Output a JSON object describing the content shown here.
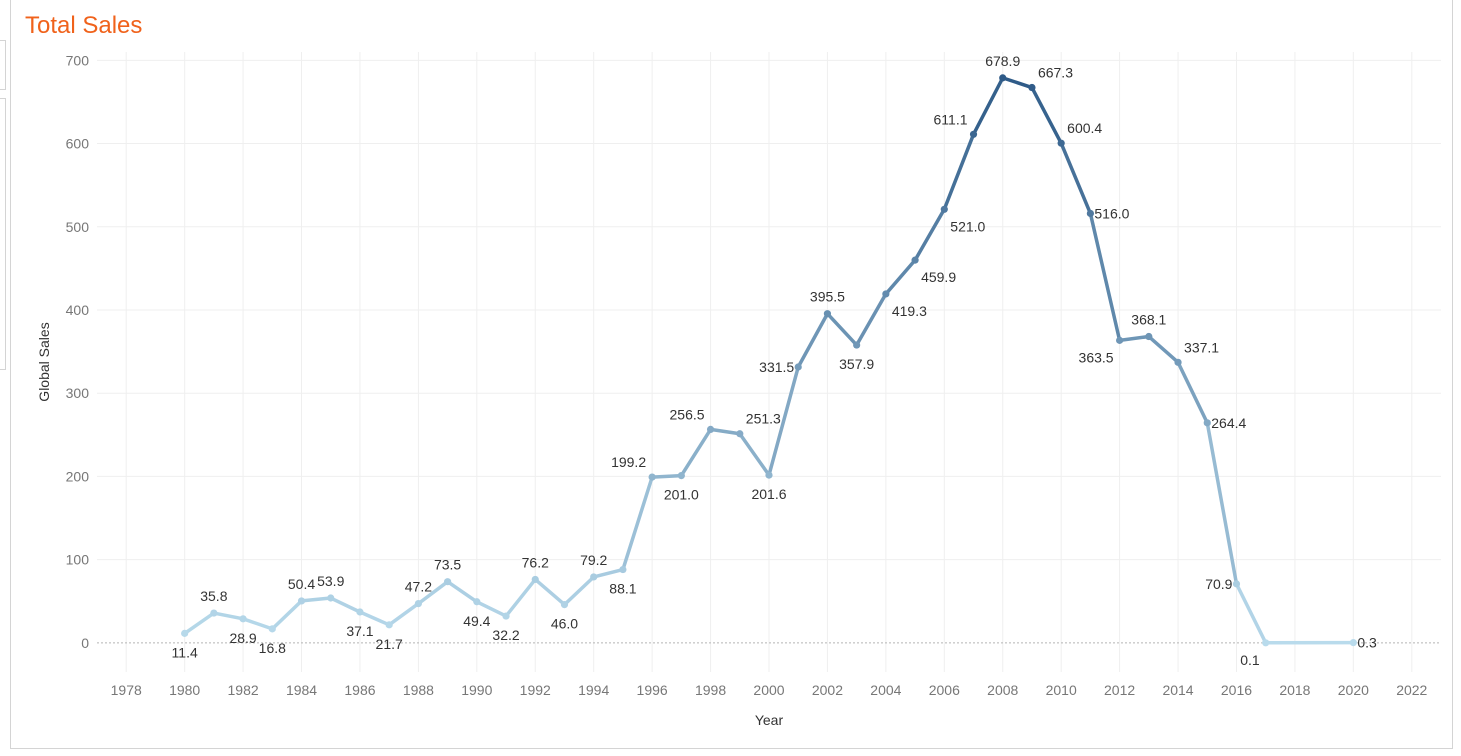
{
  "title": "Total Sales",
  "colors": {
    "title": "#f0621b",
    "low": "#b9dbec",
    "high": "#2e5a87"
  },
  "chart_data": {
    "type": "line",
    "title": "Total Sales",
    "xlabel": "Year",
    "ylabel": "Global Sales",
    "xlim": [
      1977,
      2023
    ],
    "ylim": [
      -35,
      710
    ],
    "x_ticks": [
      "1978",
      "1980",
      "1982",
      "1984",
      "1986",
      "1988",
      "1990",
      "1992",
      "1994",
      "1996",
      "1998",
      "2000",
      "2002",
      "2004",
      "2006",
      "2008",
      "2010",
      "2012",
      "2014",
      "2016",
      "2018",
      "2020",
      "2022"
    ],
    "y_ticks": [
      "0",
      "100",
      "200",
      "300",
      "400",
      "500",
      "600",
      "700"
    ],
    "grid": true,
    "color_encoding": "line color darkens with sales value",
    "series": [
      {
        "points": [
          {
            "x": 1980,
            "y": 11.4,
            "label": "11.4",
            "pos": "below"
          },
          {
            "x": 1981,
            "y": 35.8,
            "label": "35.8",
            "pos": "above"
          },
          {
            "x": 1982,
            "y": 28.9,
            "label": "28.9",
            "pos": "below"
          },
          {
            "x": 1983,
            "y": 16.8,
            "label": "16.8",
            "pos": "below"
          },
          {
            "x": 1984,
            "y": 50.4,
            "label": "50.4",
            "pos": "above"
          },
          {
            "x": 1985,
            "y": 53.9,
            "label": "53.9",
            "pos": "above"
          },
          {
            "x": 1986,
            "y": 37.1,
            "label": "37.1",
            "pos": "below"
          },
          {
            "x": 1987,
            "y": 21.7,
            "label": "21.7",
            "pos": "below"
          },
          {
            "x": 1988,
            "y": 47.2,
            "label": "47.2",
            "pos": "above"
          },
          {
            "x": 1989,
            "y": 73.5,
            "label": "73.5",
            "pos": "above"
          },
          {
            "x": 1990,
            "y": 49.4,
            "label": "49.4",
            "pos": "below"
          },
          {
            "x": 1991,
            "y": 32.2,
            "label": "32.2",
            "pos": "below"
          },
          {
            "x": 1992,
            "y": 76.2,
            "label": "76.2",
            "pos": "above"
          },
          {
            "x": 1993,
            "y": 46.0,
            "label": "46.0",
            "pos": "below"
          },
          {
            "x": 1994,
            "y": 79.2,
            "label": "79.2",
            "pos": "above"
          },
          {
            "x": 1995,
            "y": 88.1,
            "label": "88.1",
            "pos": "below"
          },
          {
            "x": 1996,
            "y": 199.2,
            "label": "199.2",
            "pos": "aboveleft"
          },
          {
            "x": 1997,
            "y": 201.0,
            "label": "201.0",
            "pos": "below"
          },
          {
            "x": 1998,
            "y": 256.5,
            "label": "256.5",
            "pos": "aboveleft"
          },
          {
            "x": 1999,
            "y": 251.3,
            "label": "251.3",
            "pos": "aboveright"
          },
          {
            "x": 2000,
            "y": 201.6,
            "label": "201.6",
            "pos": "below"
          },
          {
            "x": 2001,
            "y": 331.5,
            "label": "331.5",
            "pos": "left"
          },
          {
            "x": 2002,
            "y": 395.5,
            "label": "395.5",
            "pos": "above"
          },
          {
            "x": 2003,
            "y": 357.9,
            "label": "357.9",
            "pos": "below"
          },
          {
            "x": 2004,
            "y": 419.3,
            "label": "419.3",
            "pos": "belowright"
          },
          {
            "x": 2005,
            "y": 459.9,
            "label": "459.9",
            "pos": "belowright"
          },
          {
            "x": 2006,
            "y": 521.0,
            "label": "521.0",
            "pos": "belowright"
          },
          {
            "x": 2007,
            "y": 611.1,
            "label": "611.1",
            "pos": "aboveleft"
          },
          {
            "x": 2008,
            "y": 678.9,
            "label": "678.9",
            "pos": "above"
          },
          {
            "x": 2009,
            "y": 667.3,
            "label": "667.3",
            "pos": "aboveright"
          },
          {
            "x": 2010,
            "y": 600.4,
            "label": "600.4",
            "pos": "aboveright"
          },
          {
            "x": 2011,
            "y": 516.0,
            "label": "516.0",
            "pos": "right"
          },
          {
            "x": 2012,
            "y": 363.5,
            "label": "363.5",
            "pos": "belowleft"
          },
          {
            "x": 2013,
            "y": 368.1,
            "label": "368.1",
            "pos": "above"
          },
          {
            "x": 2014,
            "y": 337.1,
            "label": "337.1",
            "pos": "aboveright"
          },
          {
            "x": 2015,
            "y": 264.4,
            "label": "264.4",
            "pos": "right"
          },
          {
            "x": 2016,
            "y": 70.9,
            "label": "70.9",
            "pos": "left"
          },
          {
            "x": 2017,
            "y": 0.1,
            "label": "0.1",
            "pos": "belowleft"
          },
          {
            "x": 2020,
            "y": 0.3,
            "label": "0.3",
            "pos": "right"
          }
        ]
      }
    ]
  }
}
